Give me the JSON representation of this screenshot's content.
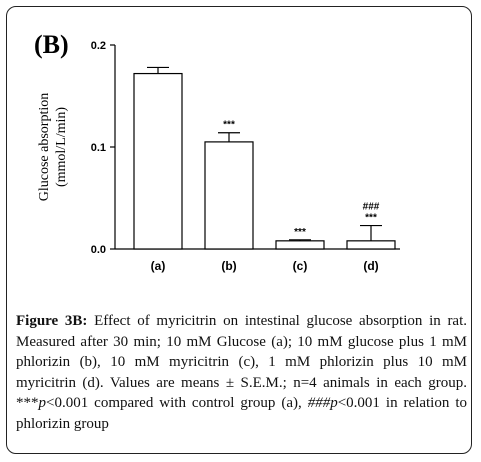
{
  "panel_label": "(B)",
  "chart_data": {
    "type": "bar",
    "categories": [
      "(a)",
      "(b)",
      "(c)",
      "(d)"
    ],
    "values": [
      0.172,
      0.105,
      0.008,
      0.008
    ],
    "errors": [
      0.006,
      0.009,
      0.001,
      0.015
    ],
    "significance": [
      [],
      [
        "***"
      ],
      [
        "***"
      ],
      [
        "***",
        "###"
      ]
    ],
    "ylabel": "Glucose absorption",
    "ylabel_units": "(mmol/L/min)",
    "ylim": [
      0,
      0.2
    ],
    "yticks": [
      "0.0",
      "0.1",
      "0.2"
    ],
    "grid": false
  },
  "caption": {
    "figure_label": "Figure 3B:",
    "line1": " Effect of myricitrin on intestinal glucose absorption in rat. Measured after 30 min; 10 mM Glucose (a); 10 mM glucose plus 1 mM phlorizin (b), 10 mM myricitrin (c), 1 mM phlorizin plus 10 mM myricitrin (d). Values are means ± S.E.M.; n=4 animals in each group. ***",
    "p1": "p",
    "line2": "<0.001 compared with control group (a), ",
    "hash_p": "###p",
    "line3": "<0.001 in relation to phlorizin group"
  }
}
